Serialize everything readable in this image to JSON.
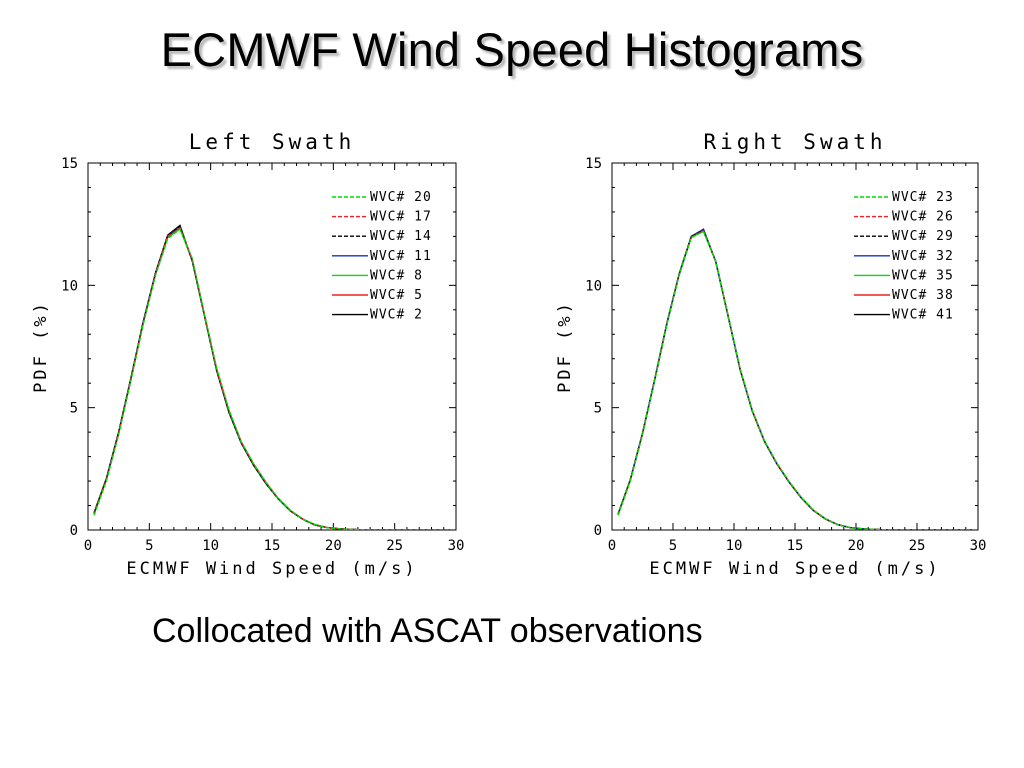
{
  "title": "ECMWF Wind Speed Histograms",
  "subtitle": "Collocated with ASCAT observations",
  "colors": {
    "green": "#00dd00",
    "red": "#ee2222",
    "black": "#000000",
    "blue": "#1133cc"
  },
  "chart_data": [
    {
      "type": "line",
      "title": "Left Swath",
      "xlabel": "ECMWF Wind Speed (m/s)",
      "ylabel": "PDF (%)",
      "xlim": [
        0,
        30
      ],
      "ylim": [
        0,
        15
      ],
      "xticks": [
        0,
        5,
        10,
        15,
        20,
        25,
        30
      ],
      "yticks": [
        0,
        5,
        10,
        15
      ],
      "grid": false,
      "legend_position": "top-right",
      "x": [
        0.5,
        1.5,
        2.5,
        3.5,
        4.5,
        5.5,
        6.5,
        7.5,
        8.5,
        9.5,
        10.5,
        11.5,
        12.5,
        13.5,
        14.5,
        15.5,
        16.5,
        17.5,
        18.5,
        19.5,
        20.5,
        21.5,
        22.5,
        23.5,
        24.5,
        25.5,
        26.5,
        27.5,
        28.5,
        29.5
      ],
      "series": [
        {
          "name": "WVC# 20",
          "color": "#00dd00",
          "dash": "dashed",
          "values": [
            0.6,
            2.0,
            3.9,
            6.1,
            8.4,
            10.4,
            11.9,
            12.3,
            11.1,
            8.8,
            6.6,
            4.9,
            3.6,
            2.7,
            1.95,
            1.3,
            0.8,
            0.45,
            0.22,
            0.1,
            0.05,
            0.02,
            0.01,
            0.0,
            0.0,
            0.0,
            0.0,
            0.0,
            0.0,
            0.0
          ]
        },
        {
          "name": "WVC# 17",
          "color": "#ee2222",
          "dash": "dashed",
          "values": [
            0.65,
            2.05,
            3.95,
            6.15,
            8.45,
            10.45,
            12.0,
            12.35,
            11.05,
            8.8,
            6.55,
            4.85,
            3.6,
            2.7,
            1.95,
            1.3,
            0.8,
            0.45,
            0.22,
            0.1,
            0.05,
            0.02,
            0.01,
            0.0,
            0.0,
            0.0,
            0.0,
            0.0,
            0.0,
            0.0
          ]
        },
        {
          "name": "WVC# 14",
          "color": "#000000",
          "dash": "dashed",
          "values": [
            0.7,
            2.1,
            4.0,
            6.2,
            8.5,
            10.5,
            12.05,
            12.4,
            11.0,
            8.75,
            6.5,
            4.8,
            3.55,
            2.65,
            1.9,
            1.28,
            0.78,
            0.44,
            0.21,
            0.1,
            0.05,
            0.02,
            0.01,
            0.0,
            0.0,
            0.0,
            0.0,
            0.0,
            0.0,
            0.0
          ]
        },
        {
          "name": "WVC# 11",
          "color": "#1133cc",
          "dash": "solid",
          "values": [
            0.7,
            2.1,
            4.0,
            6.2,
            8.5,
            10.5,
            12.0,
            12.4,
            11.0,
            8.75,
            6.5,
            4.8,
            3.55,
            2.65,
            1.9,
            1.28,
            0.78,
            0.44,
            0.21,
            0.1,
            0.05,
            0.02,
            0.01,
            0.0,
            0.0,
            0.0,
            0.0,
            0.0,
            0.0,
            0.0
          ]
        },
        {
          "name": "WVC# 8",
          "color": "#00dd00",
          "dash": "solid",
          "values": [
            0.65,
            2.05,
            3.95,
            6.15,
            8.45,
            10.45,
            11.95,
            12.3,
            11.05,
            8.8,
            6.55,
            4.85,
            3.6,
            2.7,
            1.95,
            1.3,
            0.8,
            0.45,
            0.22,
            0.1,
            0.05,
            0.02,
            0.01,
            0.0,
            0.0,
            0.0,
            0.0,
            0.0,
            0.0,
            0.0
          ]
        },
        {
          "name": "WVC# 5",
          "color": "#ee2222",
          "dash": "solid",
          "values": [
            0.68,
            2.08,
            3.98,
            6.18,
            8.48,
            10.48,
            12.02,
            12.38,
            11.02,
            8.78,
            6.52,
            4.82,
            3.58,
            2.68,
            1.92,
            1.29,
            0.79,
            0.44,
            0.21,
            0.1,
            0.05,
            0.02,
            0.01,
            0.0,
            0.0,
            0.0,
            0.0,
            0.0,
            0.0,
            0.0
          ]
        },
        {
          "name": "WVC# 2",
          "color": "#000000",
          "dash": "solid",
          "values": [
            0.7,
            2.1,
            4.0,
            6.2,
            8.5,
            10.5,
            12.05,
            12.45,
            11.0,
            8.75,
            6.5,
            4.8,
            3.55,
            2.65,
            1.9,
            1.28,
            0.78,
            0.44,
            0.21,
            0.1,
            0.05,
            0.02,
            0.01,
            0.0,
            0.0,
            0.0,
            0.0,
            0.0,
            0.0,
            0.0
          ]
        }
      ]
    },
    {
      "type": "line",
      "title": "Right Swath",
      "xlabel": "ECMWF Wind Speed (m/s)",
      "ylabel": "PDF (%)",
      "xlim": [
        0,
        30
      ],
      "ylim": [
        0,
        15
      ],
      "xticks": [
        0,
        5,
        10,
        15,
        20,
        25,
        30
      ],
      "yticks": [
        0,
        5,
        10,
        15
      ],
      "grid": false,
      "legend_position": "top-right",
      "x": [
        0.5,
        1.5,
        2.5,
        3.5,
        4.5,
        5.5,
        6.5,
        7.5,
        8.5,
        9.5,
        10.5,
        11.5,
        12.5,
        13.5,
        14.5,
        15.5,
        16.5,
        17.5,
        18.5,
        19.5,
        20.5,
        21.5,
        22.5,
        23.5,
        24.5,
        25.5,
        26.5,
        27.5,
        28.5,
        29.5
      ],
      "series": [
        {
          "name": "WVC# 23",
          "color": "#00dd00",
          "dash": "dashed",
          "values": [
            0.6,
            2.0,
            3.9,
            6.1,
            8.4,
            10.4,
            11.95,
            12.2,
            11.0,
            8.8,
            6.6,
            4.9,
            3.65,
            2.75,
            2.0,
            1.35,
            0.82,
            0.46,
            0.22,
            0.1,
            0.05,
            0.02,
            0.01,
            0.0,
            0.0,
            0.0,
            0.0,
            0.0,
            0.0,
            0.0
          ]
        },
        {
          "name": "WVC# 26",
          "color": "#ee2222",
          "dash": "dashed",
          "values": [
            0.62,
            2.02,
            3.92,
            6.12,
            8.42,
            10.42,
            11.97,
            12.22,
            11.0,
            8.8,
            6.58,
            4.88,
            3.63,
            2.73,
            1.98,
            1.33,
            0.81,
            0.45,
            0.22,
            0.1,
            0.05,
            0.02,
            0.01,
            0.0,
            0.0,
            0.0,
            0.0,
            0.0,
            0.0,
            0.0
          ]
        },
        {
          "name": "WVC# 29",
          "color": "#000000",
          "dash": "dashed",
          "values": [
            0.65,
            2.05,
            3.95,
            6.15,
            8.45,
            10.45,
            12.0,
            12.25,
            10.98,
            8.78,
            6.56,
            4.86,
            3.62,
            2.72,
            1.97,
            1.32,
            0.8,
            0.45,
            0.22,
            0.1,
            0.05,
            0.02,
            0.01,
            0.0,
            0.0,
            0.0,
            0.0,
            0.0,
            0.0,
            0.0
          ]
        },
        {
          "name": "WVC# 32",
          "color": "#1133cc",
          "dash": "solid",
          "values": [
            0.65,
            2.05,
            3.95,
            6.15,
            8.45,
            10.45,
            12.0,
            12.3,
            10.98,
            8.78,
            6.56,
            4.86,
            3.62,
            2.72,
            1.97,
            1.32,
            0.8,
            0.45,
            0.22,
            0.1,
            0.05,
            0.02,
            0.01,
            0.0,
            0.0,
            0.0,
            0.0,
            0.0,
            0.0,
            0.0
          ]
        },
        {
          "name": "WVC# 35",
          "color": "#00dd00",
          "dash": "solid",
          "values": [
            0.62,
            2.02,
            3.92,
            6.12,
            8.42,
            10.42,
            11.97,
            12.2,
            11.0,
            8.8,
            6.58,
            4.88,
            3.63,
            2.73,
            1.98,
            1.33,
            0.81,
            0.45,
            0.22,
            0.1,
            0.05,
            0.02,
            0.01,
            0.0,
            0.0,
            0.0,
            0.0,
            0.0,
            0.0,
            0.0
          ]
        },
        {
          "name": "WVC# 38",
          "color": "#ee2222",
          "dash": "solid",
          "values": [
            0.64,
            2.04,
            3.94,
            6.14,
            8.44,
            10.44,
            11.99,
            12.24,
            10.99,
            8.79,
            6.57,
            4.87,
            3.62,
            2.72,
            1.97,
            1.32,
            0.8,
            0.45,
            0.22,
            0.1,
            0.05,
            0.02,
            0.01,
            0.0,
            0.0,
            0.0,
            0.0,
            0.0,
            0.0,
            0.0
          ]
        },
        {
          "name": "WVC# 41",
          "color": "#000000",
          "dash": "solid",
          "values": [
            0.65,
            2.05,
            3.95,
            6.15,
            8.45,
            10.45,
            12.0,
            12.25,
            10.98,
            8.78,
            6.56,
            4.86,
            3.62,
            2.72,
            1.97,
            1.32,
            0.8,
            0.45,
            0.22,
            0.1,
            0.05,
            0.02,
            0.01,
            0.0,
            0.0,
            0.0,
            0.0,
            0.0,
            0.0,
            0.0
          ]
        }
      ]
    }
  ]
}
